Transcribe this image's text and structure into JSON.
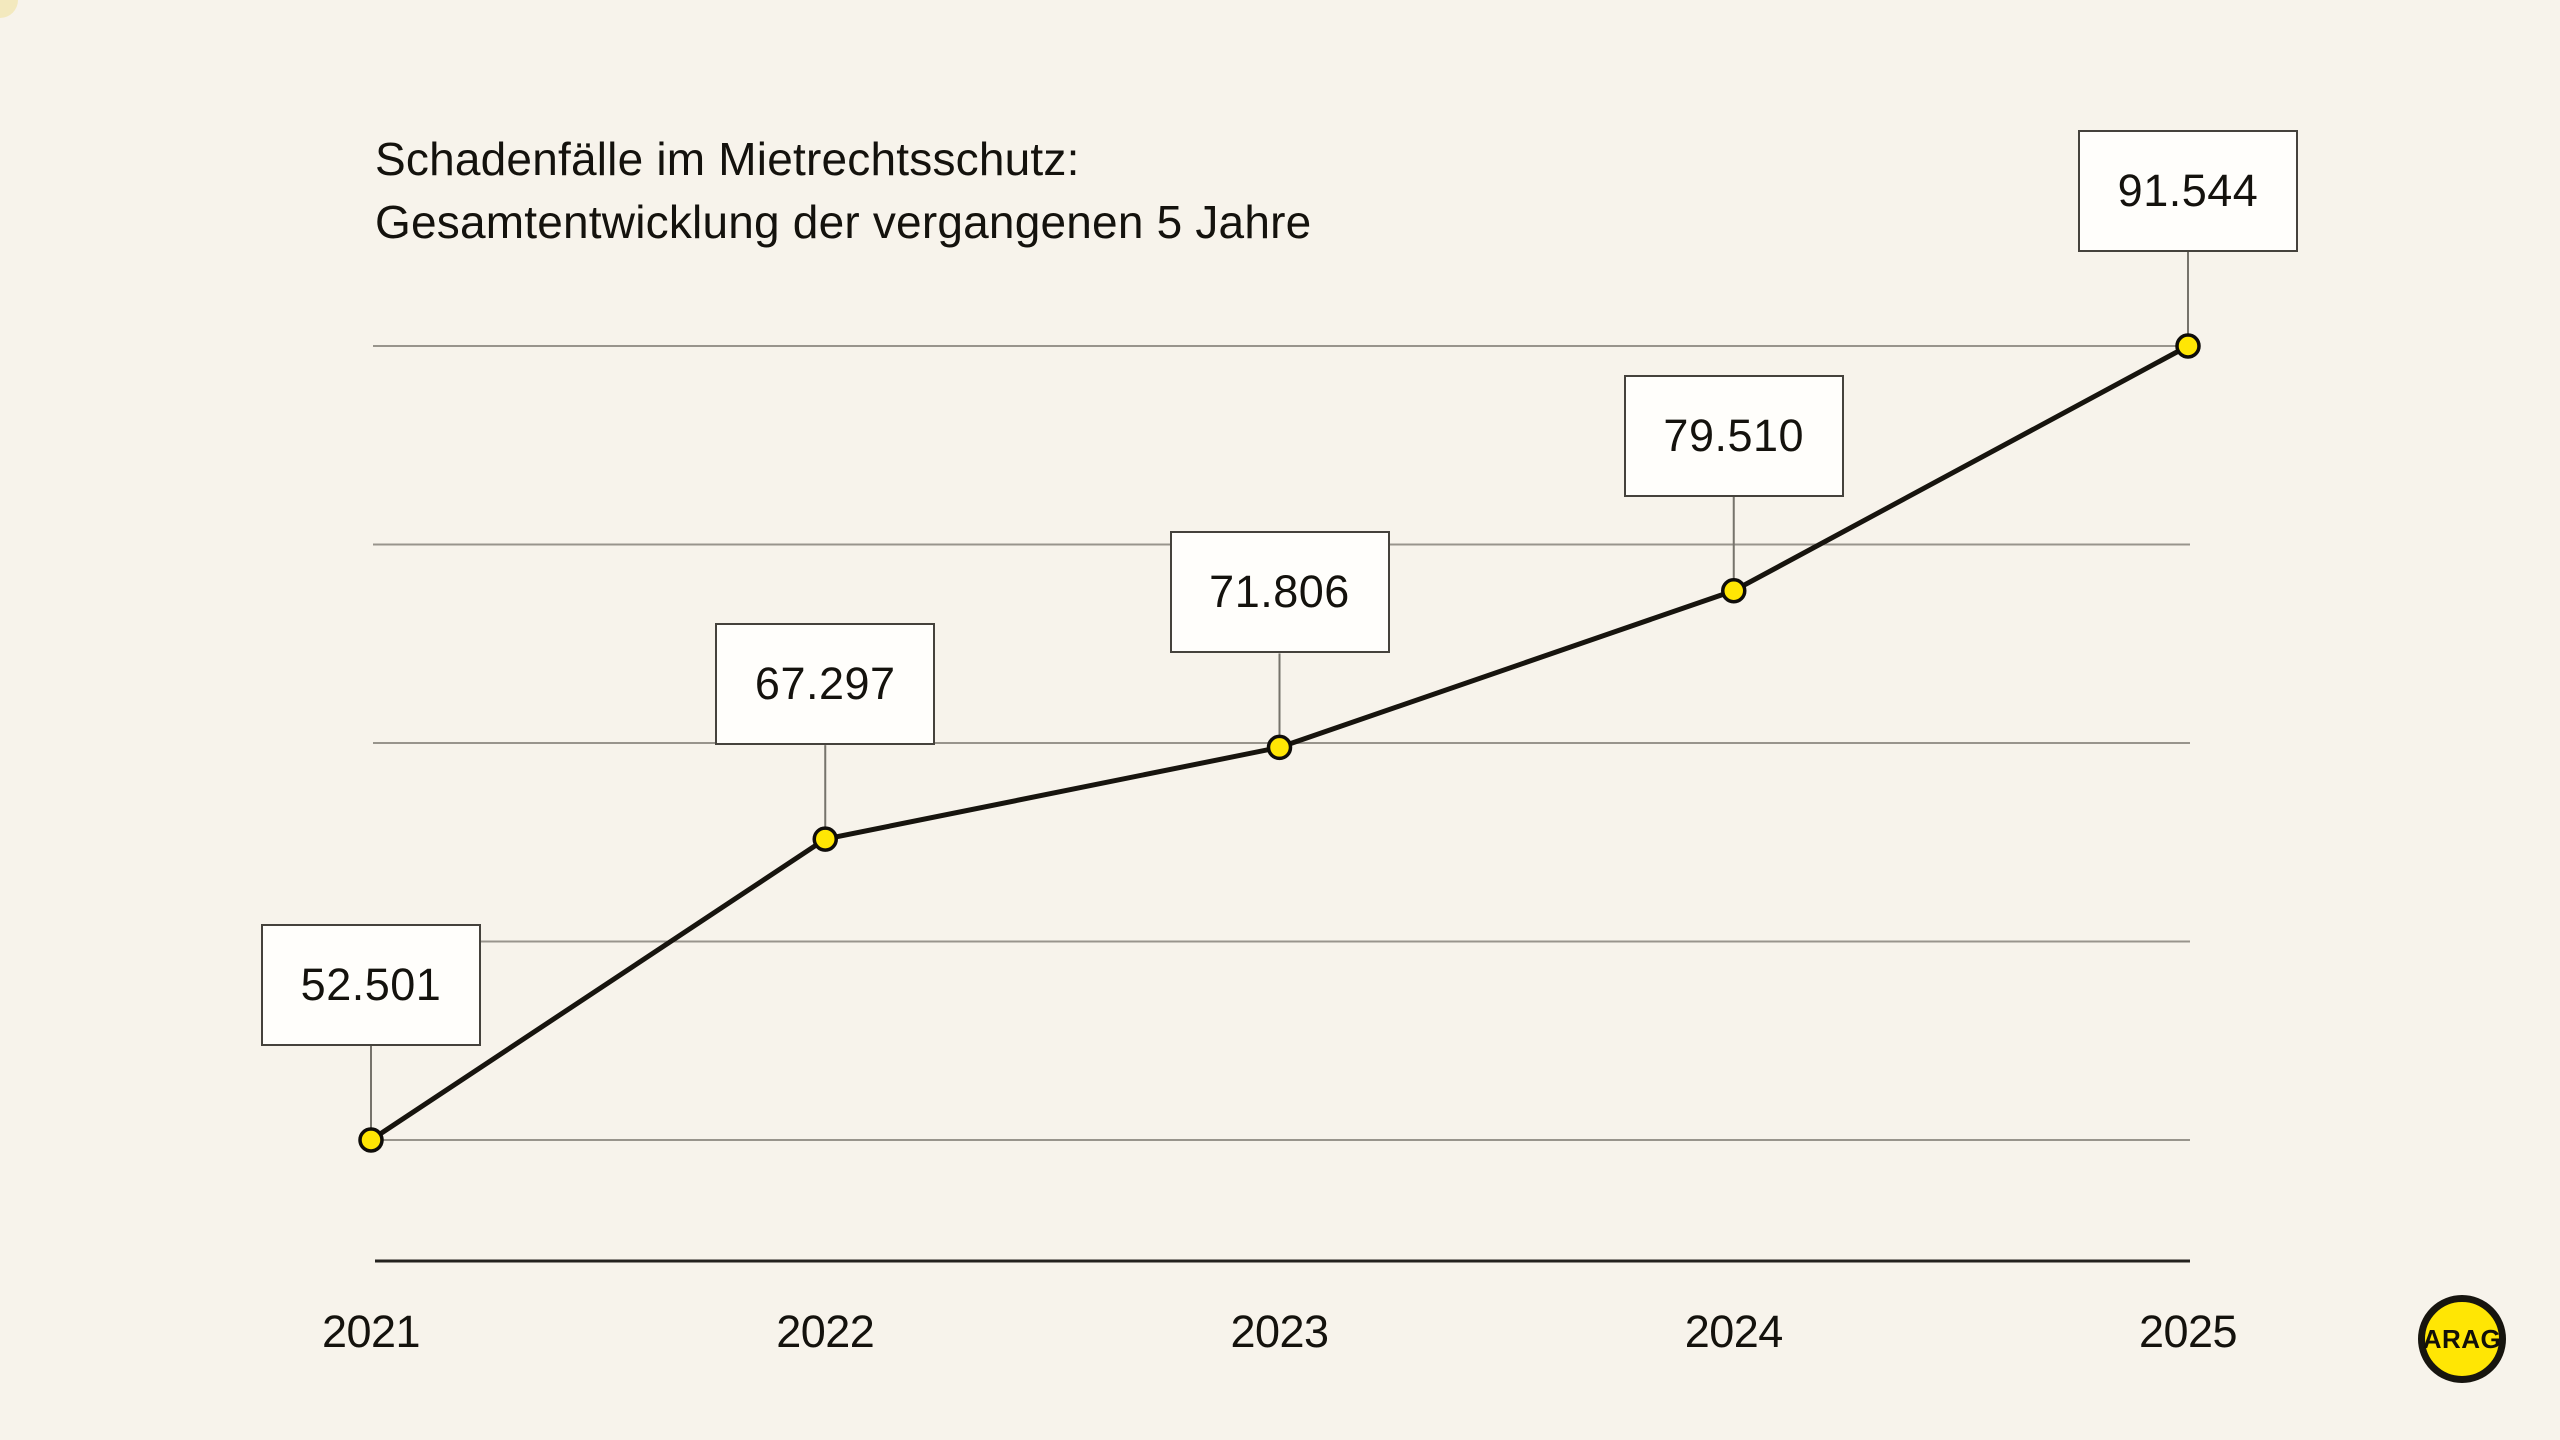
{
  "header": {
    "title_line1": "Schadenfälle im Mietrechtsschutz:",
    "title_line2": "Gesamtentwicklung der vergangenen 5 Jahre"
  },
  "chart_data": {
    "type": "line",
    "title": "Schadenfälle im Mietrechtsschutz: Gesamtentwicklung der vergangenen 5 Jahre",
    "categories": [
      "2021",
      "2022",
      "2023",
      "2024",
      "2025"
    ],
    "values": [
      52501,
      67297,
      71806,
      79510,
      91544
    ],
    "value_labels": [
      "52.501",
      "67.297",
      "71.806",
      "79.510",
      "91.544"
    ],
    "xlabel": "",
    "ylabel": "",
    "ylim": [
      52501,
      91544
    ],
    "gridlines": 5,
    "grid": "horizontal only",
    "legend": "none",
    "marker": "circle",
    "annotation_style": "white boxed value labels connected to each point"
  },
  "logo": {
    "text": "ARAG"
  },
  "colors": {
    "background": "#F7F3EB",
    "accent_yellow": "#FFE604",
    "line_black": "#17140E",
    "grid_gray": "#98948C",
    "axis_dark": "#24221E",
    "box_border": "#45423C",
    "box_fill": "#FFFEFB",
    "connector_gray": "#76736B",
    "text": "#14120D",
    "corner_decoration": "#F3E9BE"
  }
}
